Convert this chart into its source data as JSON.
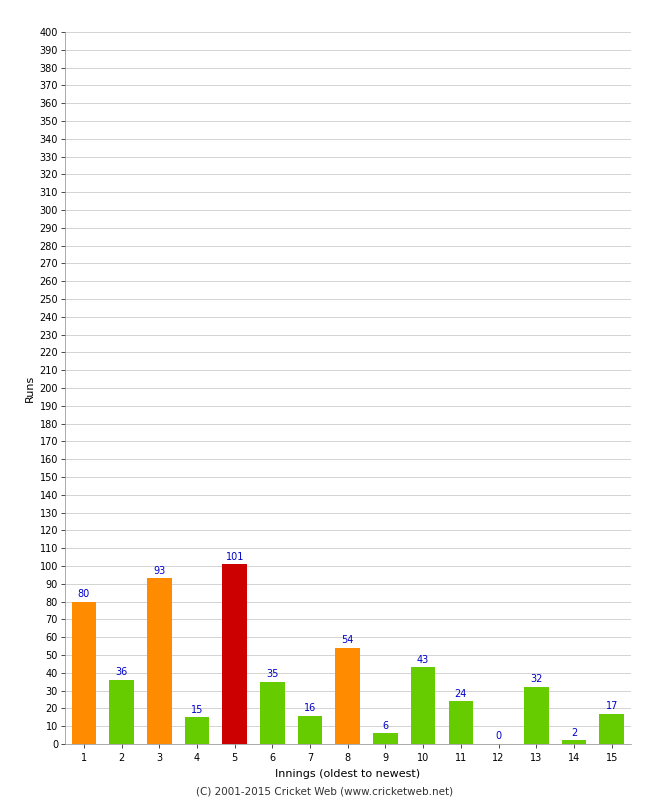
{
  "innings": [
    1,
    2,
    3,
    4,
    5,
    6,
    7,
    8,
    9,
    10,
    11,
    12,
    13,
    14,
    15
  ],
  "values": [
    80,
    36,
    93,
    15,
    101,
    35,
    16,
    54,
    6,
    43,
    24,
    0,
    32,
    2,
    17
  ],
  "bar_colors": [
    "#ff8c00",
    "#66cc00",
    "#ff8c00",
    "#66cc00",
    "#cc0000",
    "#66cc00",
    "#66cc00",
    "#ff8c00",
    "#66cc00",
    "#66cc00",
    "#66cc00",
    "#66cc00",
    "#66cc00",
    "#66cc00",
    "#66cc00"
  ],
  "ylabel": "Runs",
  "xlabel": "Innings (oldest to newest)",
  "ylim": [
    0,
    400
  ],
  "yticks": [
    0,
    10,
    20,
    30,
    40,
    50,
    60,
    70,
    80,
    90,
    100,
    110,
    120,
    130,
    140,
    150,
    160,
    170,
    180,
    190,
    200,
    210,
    220,
    230,
    240,
    250,
    260,
    270,
    280,
    290,
    300,
    310,
    320,
    330,
    340,
    350,
    360,
    370,
    380,
    390,
    400
  ],
  "footer": "(C) 2001-2015 Cricket Web (www.cricketweb.net)",
  "label_color": "#0000cc",
  "background_color": "#ffffff",
  "grid_color": "#cccccc",
  "bar_width": 0.65
}
